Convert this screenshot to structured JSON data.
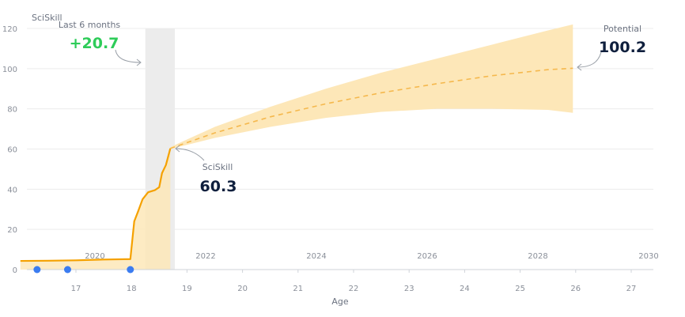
{
  "chart_data": {
    "type": "line",
    "ylabel": "SciSkill",
    "xlabel": "Age",
    "ylim": [
      0,
      120
    ],
    "yticks": [
      0,
      20,
      40,
      60,
      80,
      100,
      120
    ],
    "age_ticks": [
      "17",
      "18",
      "19",
      "20",
      "21",
      "22",
      "23",
      "24",
      "25",
      "26",
      "27"
    ],
    "year_ticks": [
      "2020",
      "2022",
      "2024",
      "2026",
      "2028",
      "2030"
    ],
    "grid": true,
    "series": [
      {
        "name": "SciSkill",
        "style": "solid",
        "color": "#f5a100",
        "points": [
          {
            "age": 16.0,
            "value": 4.3
          },
          {
            "age": 16.5,
            "value": 4.4
          },
          {
            "age": 17.0,
            "value": 4.6
          },
          {
            "age": 17.5,
            "value": 5.0
          },
          {
            "age": 17.98,
            "value": 5.2
          },
          {
            "age": 18.05,
            "value": 24.0
          },
          {
            "age": 18.12,
            "value": 29.0
          },
          {
            "age": 18.2,
            "value": 35.0
          },
          {
            "age": 18.3,
            "value": 38.5
          },
          {
            "age": 18.42,
            "value": 39.5
          },
          {
            "age": 18.5,
            "value": 41.0
          },
          {
            "age": 18.55,
            "value": 48.0
          },
          {
            "age": 18.62,
            "value": 52.0
          },
          {
            "age": 18.7,
            "value": 60.3
          }
        ]
      },
      {
        "name": "Potential",
        "style": "dashed",
        "color": "#f5b84d",
        "points": [
          {
            "age": 18.7,
            "value": 60.3
          },
          {
            "age": 19.5,
            "value": 68.0
          },
          {
            "age": 20.5,
            "value": 76.0
          },
          {
            "age": 21.5,
            "value": 82.5
          },
          {
            "age": 22.5,
            "value": 88.0
          },
          {
            "age": 23.5,
            "value": 92.5
          },
          {
            "age": 24.5,
            "value": 96.5
          },
          {
            "age": 25.5,
            "value": 99.5
          },
          {
            "age": 25.95,
            "value": 100.2
          }
        ]
      }
    ],
    "band": {
      "color": "#fde7b8",
      "upper": [
        {
          "age": 18.7,
          "value": 61.0
        },
        {
          "age": 19.5,
          "value": 71.0
        },
        {
          "age": 20.5,
          "value": 81.0
        },
        {
          "age": 21.5,
          "value": 90.0
        },
        {
          "age": 22.5,
          "value": 98.0
        },
        {
          "age": 23.5,
          "value": 105.0
        },
        {
          "age": 24.5,
          "value": 112.0
        },
        {
          "age": 25.5,
          "value": 119.0
        },
        {
          "age": 25.95,
          "value": 122.0
        }
      ],
      "lower": [
        {
          "age": 18.7,
          "value": 60.0
        },
        {
          "age": 19.5,
          "value": 65.5
        },
        {
          "age": 20.5,
          "value": 71.0
        },
        {
          "age": 21.5,
          "value": 75.5
        },
        {
          "age": 22.5,
          "value": 78.5
        },
        {
          "age": 23.5,
          "value": 80.0
        },
        {
          "age": 24.5,
          "value": 80.0
        },
        {
          "age": 25.5,
          "value": 79.5
        },
        {
          "age": 25.95,
          "value": 78.0
        }
      ]
    },
    "highlight_range": [
      18.25,
      18.78
    ],
    "events": [
      16.3,
      16.85,
      17.98
    ],
    "annotations": {
      "last6_label": "Last 6 months",
      "last6_value": "+20.7",
      "current_label": "SciSkill",
      "current_value": "60.3",
      "potential_label": "Potential",
      "potential_value": "100.2"
    },
    "colors": {
      "accent_green": "#2ecc59",
      "value_dark": "#0f1f3d",
      "event_blue": "#3b7cf0",
      "highlight_grey": "#ececec"
    }
  }
}
